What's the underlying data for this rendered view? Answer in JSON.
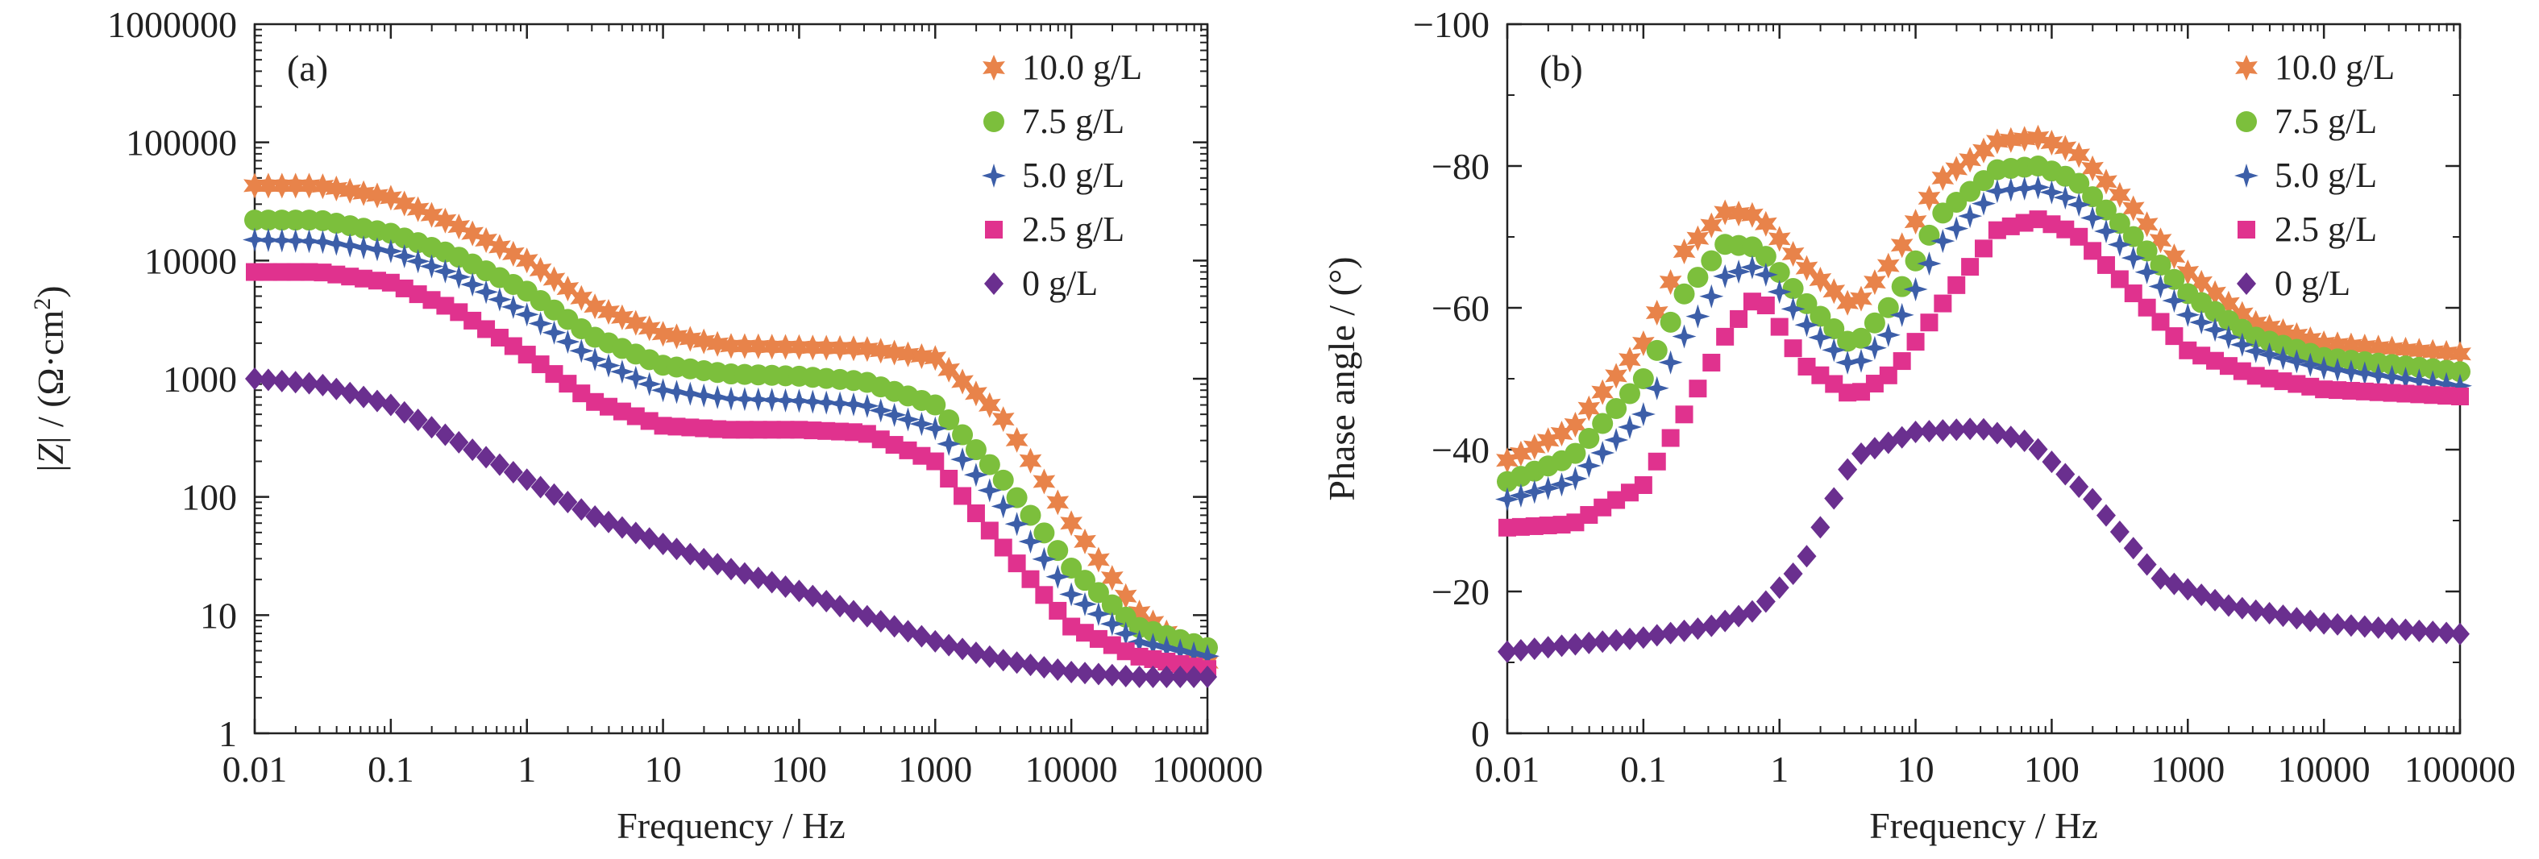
{
  "chart_data": [
    {
      "type": "scatter",
      "panel_label": "(a)",
      "xlabel": "Frequency / Hz",
      "ylabel": "|Z| / (Ω·cm²)",
      "ylabel_parts": {
        "pre": "|",
        "italic": "Z",
        "mid": "| / (Ω·cm",
        "sup": "2",
        "post": ")"
      },
      "x_scale": "log",
      "y_scale": "log",
      "xlim": [
        0.01,
        100000
      ],
      "ylim": [
        1,
        1000000
      ],
      "x_ticks": [
        0.01,
        0.1,
        1,
        10,
        100,
        1000,
        10000,
        100000
      ],
      "x_tick_labels": [
        "0.01",
        "0.1",
        "1",
        "10",
        "100",
        "1000",
        "10000",
        "100000"
      ],
      "y_ticks": [
        1,
        10,
        100,
        1000,
        10000,
        100000,
        1000000
      ],
      "y_tick_labels": [
        "1",
        "10",
        "100",
        "1000",
        "10000",
        "100000",
        "1000000"
      ],
      "grid": false,
      "legend_position": "top-right",
      "series": [
        {
          "name": "10.0 g/L",
          "color": "#e8834a",
          "marker": "star6",
          "points": [
            [
              0.01,
              43000
            ],
            [
              0.03,
              43000
            ],
            [
              0.1,
              34000
            ],
            [
              0.3,
              20000
            ],
            [
              1,
              10000
            ],
            [
              3,
              4200
            ],
            [
              10,
              2400
            ],
            [
              30,
              1900
            ],
            [
              100,
              1850
            ],
            [
              300,
              1800
            ],
            [
              1000,
              1500
            ],
            [
              3000,
              500
            ],
            [
              10000,
              60
            ],
            [
              30000,
              11
            ],
            [
              100000,
              4
            ]
          ]
        },
        {
          "name": "7.5 g/L",
          "color": "#7cbf3c",
          "marker": "circle",
          "points": [
            [
              0.01,
              22000
            ],
            [
              0.03,
              22000
            ],
            [
              0.1,
              17000
            ],
            [
              0.3,
              11000
            ],
            [
              1,
              5500
            ],
            [
              3,
              2300
            ],
            [
              10,
              1300
            ],
            [
              30,
              1100
            ],
            [
              100,
              1050
            ],
            [
              300,
              950
            ],
            [
              1000,
              600
            ],
            [
              3000,
              150
            ],
            [
              10000,
              25
            ],
            [
              30000,
              8
            ],
            [
              100000,
              5.3
            ]
          ]
        },
        {
          "name": "5.0 g/L",
          "color": "#3c5ea8",
          "marker": "star4",
          "points": [
            [
              0.01,
              15000
            ],
            [
              0.03,
              14500
            ],
            [
              0.1,
              12000
            ],
            [
              0.3,
              7500
            ],
            [
              1,
              3500
            ],
            [
              3,
              1500
            ],
            [
              10,
              800
            ],
            [
              30,
              680
            ],
            [
              100,
              650
            ],
            [
              300,
              600
            ],
            [
              1000,
              380
            ],
            [
              3000,
              90
            ],
            [
              10000,
              15
            ],
            [
              30000,
              6
            ],
            [
              100000,
              4.5
            ]
          ]
        },
        {
          "name": "2.5 g/L",
          "color": "#e0328e",
          "marker": "square",
          "points": [
            [
              0.01,
              8000
            ],
            [
              0.03,
              8000
            ],
            [
              0.1,
              6500
            ],
            [
              0.3,
              3800
            ],
            [
              1,
              1600
            ],
            [
              3,
              650
            ],
            [
              10,
              400
            ],
            [
              30,
              370
            ],
            [
              100,
              370
            ],
            [
              300,
              350
            ],
            [
              1000,
              200
            ],
            [
              3000,
              40
            ],
            [
              10000,
              8
            ],
            [
              30000,
              4.5
            ],
            [
              100000,
              3.5
            ]
          ]
        },
        {
          "name": "0 g/L",
          "color": "#6a2f8f",
          "marker": "diamond",
          "points": [
            [
              0.01,
              1000
            ],
            [
              0.03,
              900
            ],
            [
              0.1,
              600
            ],
            [
              0.3,
              300
            ],
            [
              1,
              140
            ],
            [
              3,
              70
            ],
            [
              10,
              40
            ],
            [
              30,
              25
            ],
            [
              100,
              16
            ],
            [
              300,
              10
            ],
            [
              1000,
              6
            ],
            [
              3000,
              4.2
            ],
            [
              10000,
              3.3
            ],
            [
              30000,
              3
            ],
            [
              100000,
              3
            ]
          ]
        }
      ]
    },
    {
      "type": "scatter",
      "panel_label": "(b)",
      "xlabel": "Frequency / Hz",
      "ylabel": "Phase angle / (°)",
      "x_scale": "log",
      "y_scale": "linear",
      "y_inverted": true,
      "xlim": [
        0.01,
        100000
      ],
      "ylim": [
        0,
        -100
      ],
      "x_ticks": [
        0.01,
        0.1,
        1,
        10,
        100,
        1000,
        10000,
        100000
      ],
      "x_tick_labels": [
        "0.01",
        "0.1",
        "1",
        "10",
        "100",
        "1000",
        "10000",
        "100000"
      ],
      "y_ticks": [
        0,
        -20,
        -40,
        -60,
        -80,
        -100
      ],
      "y_tick_labels": [
        "0",
        "−20",
        "−40",
        "−60",
        "−80",
        "−100"
      ],
      "grid": false,
      "legend_position": "top-right",
      "series": [
        {
          "name": "10.0 g/L",
          "color": "#e8834a",
          "marker": "star6",
          "points": [
            [
              0.01,
              -38.5
            ],
            [
              0.03,
              -43
            ],
            [
              0.1,
              -55
            ],
            [
              0.2,
              -68
            ],
            [
              0.4,
              -73.5
            ],
            [
              0.7,
              -73
            ],
            [
              1.5,
              -66
            ],
            [
              3.5,
              -60
            ],
            [
              7,
              -67
            ],
            [
              15,
              -78
            ],
            [
              40,
              -83.5
            ],
            [
              80,
              -84
            ],
            [
              150,
              -82
            ],
            [
              400,
              -74
            ],
            [
              1000,
              -65
            ],
            [
              3000,
              -58
            ],
            [
              10000,
              -55
            ],
            [
              100000,
              -53.5
            ]
          ]
        },
        {
          "name": "7.5 g/L",
          "color": "#7cbf3c",
          "marker": "circle",
          "points": [
            [
              0.01,
              -35.5
            ],
            [
              0.03,
              -39
            ],
            [
              0.1,
              -50
            ],
            [
              0.2,
              -62
            ],
            [
              0.4,
              -69
            ],
            [
              0.7,
              -68.5
            ],
            [
              1.5,
              -61
            ],
            [
              3.5,
              -54.5
            ],
            [
              7,
              -61
            ],
            [
              15,
              -73
            ],
            [
              40,
              -79.5
            ],
            [
              80,
              -80
            ],
            [
              150,
              -78
            ],
            [
              400,
              -70
            ],
            [
              1000,
              -62
            ],
            [
              3000,
              -56
            ],
            [
              10000,
              -53
            ],
            [
              100000,
              -51
            ]
          ]
        },
        {
          "name": "5.0 g/L",
          "color": "#3c5ea8",
          "marker": "star4",
          "points": [
            [
              0.01,
              -33
            ],
            [
              0.03,
              -35.5
            ],
            [
              0.1,
              -45
            ],
            [
              0.2,
              -56
            ],
            [
              0.4,
              -64.5
            ],
            [
              0.7,
              -66
            ],
            [
              1.5,
              -58
            ],
            [
              3.5,
              -51.5
            ],
            [
              7,
              -57
            ],
            [
              15,
              -69
            ],
            [
              40,
              -76.5
            ],
            [
              80,
              -77
            ],
            [
              150,
              -75
            ],
            [
              400,
              -67
            ],
            [
              1000,
              -59
            ],
            [
              3000,
              -54
            ],
            [
              10000,
              -51.5
            ],
            [
              100000,
              -49
            ]
          ]
        },
        {
          "name": "2.5 g/L",
          "color": "#e0328e",
          "marker": "square",
          "points": [
            [
              0.01,
              -29
            ],
            [
              0.03,
              -29.5
            ],
            [
              0.1,
              -35
            ],
            [
              0.2,
              -45
            ],
            [
              0.4,
              -56
            ],
            [
              0.7,
              -62
            ],
            [
              1.5,
              -52
            ],
            [
              3.5,
              -47.5
            ],
            [
              7,
              -51
            ],
            [
              15,
              -60
            ],
            [
              40,
              -71
            ],
            [
              80,
              -72.5
            ],
            [
              150,
              -70.5
            ],
            [
              400,
              -62
            ],
            [
              1000,
              -54
            ],
            [
              3000,
              -50.5
            ],
            [
              10000,
              -48.5
            ],
            [
              100000,
              -47.5
            ]
          ]
        },
        {
          "name": "0 g/L",
          "color": "#6a2f8f",
          "marker": "diamond",
          "points": [
            [
              0.01,
              -11.5
            ],
            [
              0.03,
              -12.5
            ],
            [
              0.1,
              -13.5
            ],
            [
              0.3,
              -15
            ],
            [
              0.7,
              -17.5
            ],
            [
              1.5,
              -24
            ],
            [
              3.5,
              -39
            ],
            [
              10,
              -42.5
            ],
            [
              30,
              -43
            ],
            [
              70,
              -41
            ],
            [
              200,
              -33
            ],
            [
              600,
              -22
            ],
            [
              2000,
              -18
            ],
            [
              10000,
              -15.5
            ],
            [
              100000,
              -14
            ]
          ]
        }
      ]
    }
  ]
}
